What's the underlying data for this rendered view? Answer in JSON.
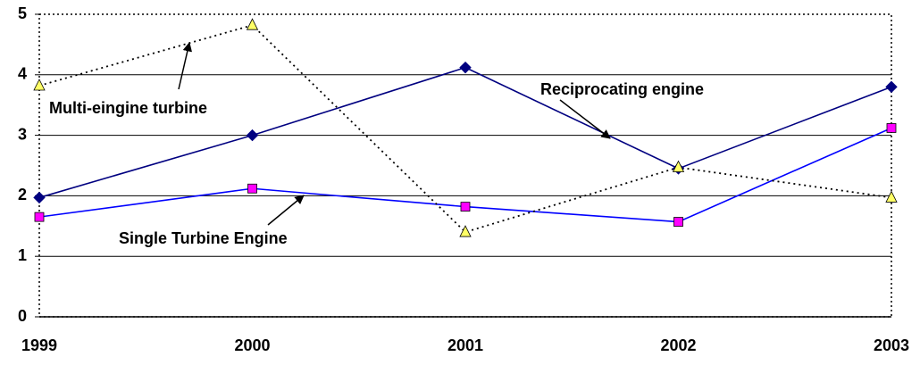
{
  "chart_data": {
    "type": "line",
    "categories": [
      "1999",
      "2000",
      "2001",
      "2002",
      "2003"
    ],
    "series": [
      {
        "name": "Reciprocating engine",
        "color": "#000080",
        "marker": "diamond",
        "marker_color": "#000080",
        "values": [
          1.97,
          3.0,
          4.12,
          2.45,
          3.8
        ]
      },
      {
        "name": "Single Turbine Engine",
        "color": "#0000ff",
        "marker": "square",
        "marker_color": "#ff00ff",
        "values": [
          1.65,
          2.12,
          1.82,
          1.57,
          3.12
        ]
      },
      {
        "name": "Multi-eingine turbine",
        "color": "#000000",
        "marker": "triangle",
        "marker_color": "#ffff66",
        "dashed": true,
        "values": [
          3.82,
          4.82,
          1.4,
          2.47,
          1.97
        ]
      }
    ],
    "ylim": [
      0,
      5
    ],
    "yticks": [
      0,
      1,
      2,
      3,
      4,
      5
    ],
    "grid": true
  }
}
